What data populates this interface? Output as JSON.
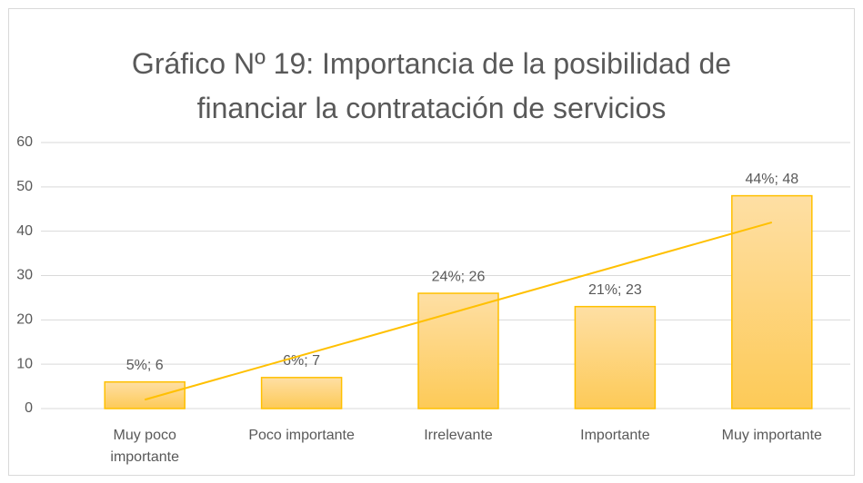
{
  "chart_data": {
    "type": "bar",
    "title": "Gráfico Nº 19: Importancia de la posibilidad de financiar la contratación de servicios",
    "categories": [
      "Muy poco importante",
      "Poco importante",
      "Irrelevante",
      "Importante",
      "Muy importante"
    ],
    "values": [
      6,
      7,
      26,
      23,
      48
    ],
    "value_labels": [
      "5%; 6",
      "6%; 7",
      "24%; 26",
      "21%; 23",
      "44%; 48"
    ],
    "color": "#ffc000",
    "trendline": "linear",
    "ylim": [
      0,
      60
    ],
    "yticks": [
      0,
      10,
      20,
      30,
      40,
      50,
      60
    ],
    "grid": true
  }
}
